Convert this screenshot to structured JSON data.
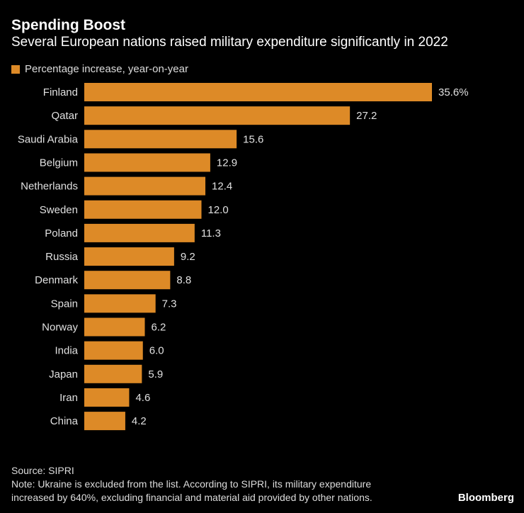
{
  "header": {
    "title": "Spending Boost",
    "subtitle": "Several European nations raised military expenditure significantly in 2022"
  },
  "footer": {
    "source": "Source: SIPRI",
    "note1": "Note: Ukraine is excluded from the list. According to SIPRI, its military expenditure",
    "note2": "increased by 640%, excluding financial and material aid provided by other nations.",
    "brand": "Bloomberg"
  },
  "chart_data": {
    "type": "bar",
    "orientation": "horizontal",
    "title": "Spending Boost",
    "subtitle": "Several European nations raised military expenditure significantly in 2022",
    "categories": [
      "Finland",
      "Qatar",
      "Saudi Arabia",
      "Belgium",
      "Netherlands",
      "Sweden",
      "Poland",
      "Russia",
      "Denmark",
      "Spain",
      "Norway",
      "India",
      "Japan",
      "Iran",
      "China"
    ],
    "series": [
      {
        "name": "Percentage increase, year-on-year",
        "values": [
          35.6,
          27.2,
          15.6,
          12.9,
          12.4,
          12.0,
          11.3,
          9.2,
          8.8,
          7.3,
          6.2,
          6.0,
          5.9,
          4.6,
          4.2
        ],
        "color": "#dd8a27"
      }
    ],
    "data_labels": [
      "35.6%",
      "27.2",
      "15.6",
      "12.9",
      "12.4",
      "12.0",
      "11.3",
      "9.2",
      "8.8",
      "7.3",
      "6.2",
      "6.0",
      "5.9",
      "4.6",
      "4.2"
    ],
    "legend": "top-left",
    "grid": false
  }
}
